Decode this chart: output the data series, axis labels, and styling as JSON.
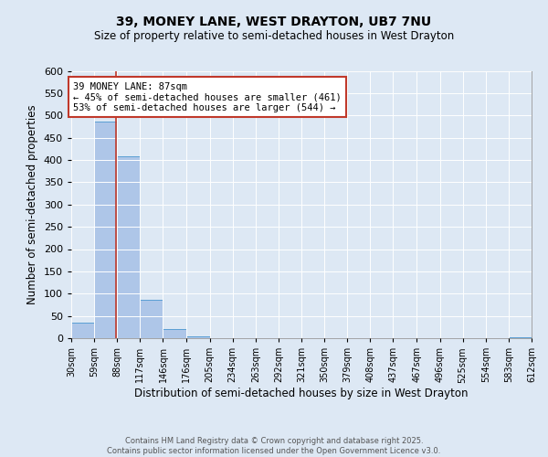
{
  "title1": "39, MONEY LANE, WEST DRAYTON, UB7 7NU",
  "title2": "Size of property relative to semi-detached houses in West Drayton",
  "xlabel": "Distribution of semi-detached houses by size in West Drayton",
  "ylabel": "Number of semi-detached properties",
  "bin_edges": [
    30,
    59,
    88,
    117,
    146,
    176,
    205,
    234,
    263,
    292,
    321,
    350,
    379,
    408,
    437,
    467,
    496,
    525,
    554,
    583,
    612
  ],
  "bin_counts": [
    35,
    487,
    408,
    87,
    20,
    5,
    0,
    0,
    0,
    0,
    0,
    0,
    0,
    0,
    0,
    0,
    0,
    0,
    0,
    3
  ],
  "bar_color": "#aec6e8",
  "bar_edge_color": "#5a9fd4",
  "property_size": 87,
  "vline_color": "#c0392b",
  "box_text_line1": "39 MONEY LANE: 87sqm",
  "box_text_line2": "← 45% of semi-detached houses are smaller (461)",
  "box_text_line3": "53% of semi-detached houses are larger (544) →",
  "box_color": "white",
  "box_edge_color": "#c0392b",
  "ylim": [
    0,
    600
  ],
  "yticks": [
    0,
    50,
    100,
    150,
    200,
    250,
    300,
    350,
    400,
    450,
    500,
    550,
    600
  ],
  "footer_line1": "Contains HM Land Registry data © Crown copyright and database right 2025.",
  "footer_line2": "Contains public sector information licensed under the Open Government Licence v3.0.",
  "bg_color": "#dde8f4",
  "plot_bg_color": "#dde8f4"
}
